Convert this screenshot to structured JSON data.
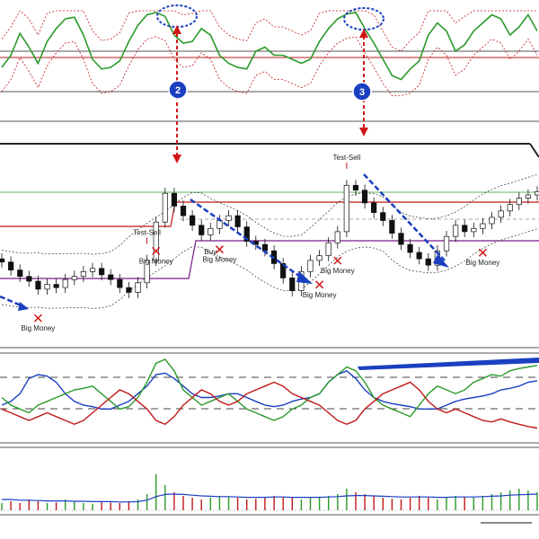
{
  "chart_data": [
    {
      "type": "line",
      "panel": "oscillator-top",
      "grid": false,
      "series": [
        {
          "color": "#2a9a2a",
          "values": [
            0.3,
            0.45,
            0.72,
            0.55,
            0.35,
            0.62,
            0.78,
            0.9,
            0.92,
            0.7,
            0.4,
            0.28,
            0.3,
            0.38,
            0.62,
            0.82,
            0.95,
            0.98,
            0.93,
            0.7,
            0.6,
            0.62,
            0.78,
            0.7,
            0.45,
            0.35,
            0.3,
            0.28,
            0.5,
            0.55,
            0.45,
            0.45,
            0.4,
            0.35,
            0.4,
            0.62,
            0.78,
            0.9,
            0.96,
            0.98,
            0.78,
            0.6,
            0.4,
            0.2,
            0.15,
            0.28,
            0.38,
            0.7,
            0.85,
            0.75,
            0.5,
            0.58,
            0.75,
            0.85,
            0.95,
            0.9,
            0.7,
            0.8,
            0.95,
            0.75
          ]
        }
      ]
    },
    {
      "type": "candlestick",
      "panel": "price",
      "grid": false,
      "annotations": [
        {
          "text": "Test-Sell",
          "x": 16
        },
        {
          "text": "Test-Sell",
          "x": 38
        },
        {
          "text": "Buy",
          "x": 23
        },
        {
          "text": "Big Money",
          "x": 4
        },
        {
          "text": "Big Money",
          "x": 17
        },
        {
          "text": "Big Money",
          "x": 24
        },
        {
          "text": "Big Money",
          "x": 35
        },
        {
          "text": "Big Money",
          "x": 37
        },
        {
          "text": "Big Money",
          "x": 53
        }
      ],
      "close": [
        79.5,
        79.0,
        78.6,
        78.3,
        77.8,
        78.1,
        77.9,
        78.4,
        78.6,
        78.9,
        79.1,
        78.7,
        78.4,
        77.9,
        77.6,
        78.2,
        79.6,
        82.0,
        83.8,
        83.0,
        82.4,
        81.8,
        81.2,
        81.6,
        82.1,
        82.4,
        81.7,
        80.8,
        80.6,
        80.2,
        79.4,
        78.5,
        77.7,
        78.9,
        79.6,
        79.9,
        80.7,
        81.4,
        84.3,
        84.0,
        83.2,
        82.6,
        82.1,
        81.3,
        80.6,
        80.1,
        79.7,
        79.3,
        80.2,
        81.1,
        81.8,
        81.4,
        81.6,
        81.9,
        82.3,
        82.7,
        83.1,
        83.5,
        83.7,
        83.9
      ]
    },
    {
      "type": "line",
      "panel": "oscillator-lines",
      "grid": false,
      "series": [
        {
          "color": "#1a3fc0",
          "values": [
            0.4,
            0.45,
            0.55,
            0.75,
            0.8,
            0.78,
            0.7,
            0.55,
            0.45,
            0.4,
            0.38,
            0.35,
            0.35,
            0.4,
            0.45,
            0.55,
            0.65,
            0.8,
            0.82,
            0.75,
            0.65,
            0.55,
            0.5,
            0.5,
            0.52,
            0.55,
            0.55,
            0.5,
            0.45,
            0.4,
            0.38,
            0.4,
            0.45,
            0.48,
            0.5,
            0.55,
            0.7,
            0.8,
            0.85,
            0.75,
            0.6,
            0.5,
            0.45,
            0.42,
            0.4,
            0.38,
            0.35,
            0.35,
            0.35,
            0.4,
            0.45,
            0.48,
            0.5,
            0.52,
            0.55,
            0.6,
            0.62,
            0.65,
            0.7,
            0.72
          ]
        },
        {
          "color": "#2a9a2a",
          "values": [
            0.5,
            0.4,
            0.35,
            0.3,
            0.4,
            0.45,
            0.5,
            0.55,
            0.6,
            0.62,
            0.65,
            0.55,
            0.45,
            0.35,
            0.38,
            0.5,
            0.7,
            0.95,
            1.0,
            0.85,
            0.6,
            0.5,
            0.4,
            0.45,
            0.5,
            0.55,
            0.45,
            0.35,
            0.3,
            0.25,
            0.2,
            0.25,
            0.35,
            0.4,
            0.5,
            0.55,
            0.7,
            0.8,
            0.9,
            0.85,
            0.7,
            0.5,
            0.4,
            0.35,
            0.3,
            0.25,
            0.4,
            0.55,
            0.65,
            0.6,
            0.55,
            0.6,
            0.7,
            0.75,
            0.8,
            0.78,
            0.85,
            0.88,
            0.9,
            0.92
          ]
        },
        {
          "color": "#c01818",
          "values": [
            0.35,
            0.3,
            0.25,
            0.2,
            0.25,
            0.3,
            0.25,
            0.2,
            0.15,
            0.2,
            0.3,
            0.4,
            0.5,
            0.6,
            0.55,
            0.45,
            0.35,
            0.2,
            0.15,
            0.25,
            0.4,
            0.5,
            0.6,
            0.55,
            0.45,
            0.4,
            0.45,
            0.55,
            0.6,
            0.65,
            0.7,
            0.65,
            0.55,
            0.5,
            0.45,
            0.4,
            0.3,
            0.2,
            0.15,
            0.2,
            0.35,
            0.45,
            0.55,
            0.6,
            0.65,
            0.7,
            0.6,
            0.45,
            0.35,
            0.3,
            0.35,
            0.3,
            0.25,
            0.2,
            0.18,
            0.22,
            0.18,
            0.15,
            0.12,
            0.1
          ]
        }
      ]
    },
    {
      "type": "bar",
      "panel": "volume",
      "grid": false,
      "values": [
        0.2,
        0.25,
        0.2,
        0.3,
        0.25,
        0.2,
        0.22,
        0.3,
        0.25,
        0.2,
        0.18,
        0.25,
        0.22,
        0.2,
        0.25,
        0.3,
        0.45,
        1.0,
        0.7,
        0.5,
        0.4,
        0.35,
        0.3,
        0.35,
        0.4,
        0.38,
        0.35,
        0.3,
        0.32,
        0.35,
        0.4,
        0.38,
        0.35,
        0.3,
        0.35,
        0.38,
        0.4,
        0.45,
        0.6,
        0.5,
        0.45,
        0.4,
        0.35,
        0.32,
        0.3,
        0.35,
        0.4,
        0.35,
        0.3,
        0.35,
        0.4,
        0.38,
        0.35,
        0.4,
        0.45,
        0.5,
        0.55,
        0.6,
        0.55,
        0.5
      ],
      "series": [
        {
          "color": "#1a3fc0",
          "values": [
            0.3,
            0.3,
            0.28,
            0.28,
            0.27,
            0.26,
            0.26,
            0.26,
            0.25,
            0.25,
            0.24,
            0.24,
            0.24,
            0.23,
            0.23,
            0.24,
            0.28,
            0.38,
            0.44,
            0.45,
            0.44,
            0.42,
            0.4,
            0.39,
            0.38,
            0.38,
            0.37,
            0.36,
            0.36,
            0.36,
            0.37,
            0.37,
            0.36,
            0.36,
            0.36,
            0.36,
            0.37,
            0.38,
            0.4,
            0.41,
            0.41,
            0.4,
            0.39,
            0.38,
            0.37,
            0.37,
            0.37,
            0.37,
            0.36,
            0.36,
            0.37,
            0.37,
            0.37,
            0.38,
            0.39,
            0.4,
            0.42,
            0.43,
            0.44,
            0.45
          ]
        }
      ]
    }
  ],
  "markers": [
    {
      "text": "2",
      "color": "#1a3fc0"
    },
    {
      "text": "3",
      "color": "#1a3fc0"
    }
  ]
}
